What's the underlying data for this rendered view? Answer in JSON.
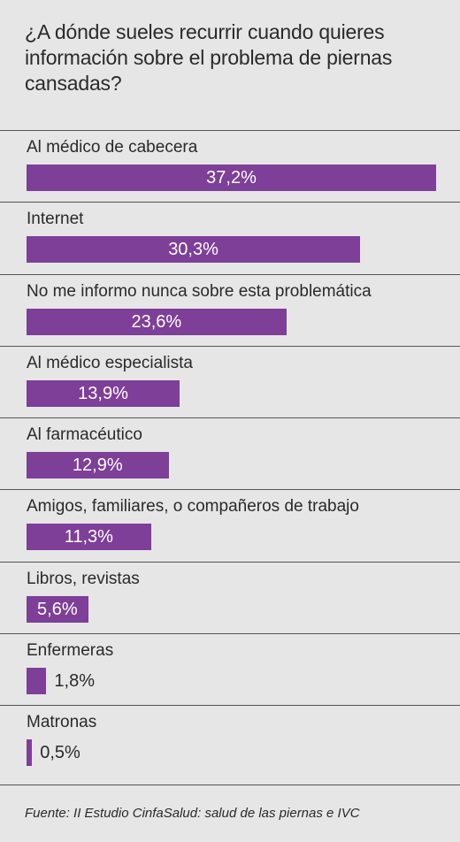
{
  "title": "¿A dónde sueles recurrir cuando quieres información sobre el problema de piernas cansadas?",
  "source": "Fuente: II Estudio CinfaSalud: salud de las piernas e IVC",
  "colors": {
    "bar": "#7e3f98",
    "background": "#e6e6e6",
    "text": "#2a2a2a"
  },
  "chart_data": {
    "type": "bar",
    "orientation": "horizontal",
    "title": "¿A dónde sueles recurrir cuando quieres información sobre el problema de piernas cansadas?",
    "xlim": [
      0,
      37.2
    ],
    "grid": false,
    "categories": [
      "Al médico de cabecera",
      "Internet",
      "No me informo nunca sobre esta problemática",
      "Al médico especialista",
      "Al farmacéutico",
      "Amigos, familiares, o compañeros de trabajo",
      "Libros, revistas",
      "Enfermeras",
      "Matronas"
    ],
    "values": [
      37.2,
      30.3,
      23.6,
      13.9,
      12.9,
      11.3,
      5.6,
      1.8,
      0.5
    ],
    "value_labels": [
      "37,2%",
      "30,3%",
      "23,6%",
      "13,9%",
      "12,9%",
      "11,3%",
      "5,6%",
      "1,8%",
      "0,5%"
    ]
  }
}
